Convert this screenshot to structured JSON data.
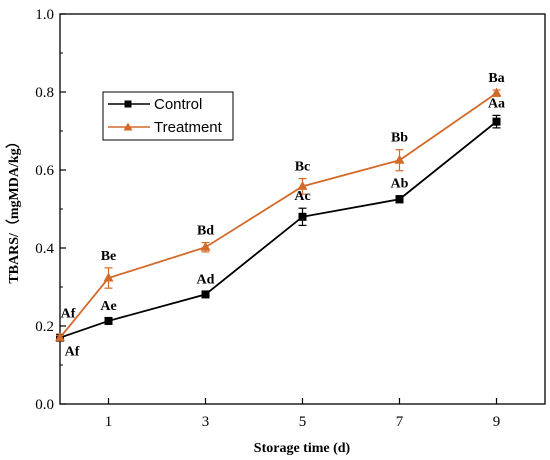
{
  "chart_data": {
    "type": "line",
    "xlabel": "Storage time (d)",
    "ylabel": "TBARS/（mgMDA/kg）",
    "xlim": [
      0,
      10
    ],
    "ylim": [
      0,
      1.0
    ],
    "x_ticks": [
      1,
      3,
      5,
      7,
      9
    ],
    "y_ticks": [
      0.0,
      0.2,
      0.4,
      0.6,
      0.8,
      1.0
    ],
    "y_tick_labels": [
      "0.0",
      "0.2",
      "0.4",
      "0.6",
      "0.8",
      "1.0"
    ],
    "legend_position": "upper-left",
    "x": [
      0,
      1,
      3,
      5,
      7,
      9
    ],
    "series": [
      {
        "name": "Control",
        "color": "#000000",
        "marker": "square",
        "values": [
          0.17,
          0.213,
          0.281,
          0.48,
          0.525,
          0.724
        ],
        "errors": [
          0.006,
          0.008,
          0.008,
          0.022,
          0.009,
          0.016
        ],
        "labels": [
          "Af",
          "Ae",
          "Ad",
          "Ac",
          "Ab",
          "Aa"
        ]
      },
      {
        "name": "Treatment",
        "color": "#d46a2a",
        "marker": "triangle",
        "values": [
          0.17,
          0.323,
          0.402,
          0.558,
          0.625,
          0.797
        ],
        "errors": [
          0.006,
          0.026,
          0.012,
          0.02,
          0.027,
          0.008
        ],
        "labels": [
          "Af",
          "Be",
          "Bd",
          "Bc",
          "Bb",
          "Ba"
        ]
      }
    ]
  }
}
